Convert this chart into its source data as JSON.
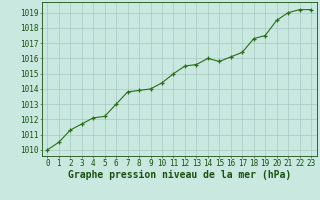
{
  "x": [
    0,
    1,
    2,
    3,
    4,
    5,
    6,
    7,
    8,
    9,
    10,
    11,
    12,
    13,
    14,
    15,
    16,
    17,
    18,
    19,
    20,
    21,
    22,
    23
  ],
  "y": [
    1010.0,
    1010.5,
    1011.3,
    1011.7,
    1012.1,
    1012.2,
    1013.0,
    1013.8,
    1013.9,
    1014.0,
    1014.4,
    1015.0,
    1015.5,
    1015.6,
    1016.0,
    1015.8,
    1016.1,
    1016.4,
    1017.3,
    1017.5,
    1018.5,
    1019.0,
    1019.2,
    1019.2
  ],
  "line_color": "#2a6e1a",
  "marker": "+",
  "bg_color": "#c8e8e0",
  "grid_color": "#a0bfbb",
  "xlabel": "Graphe pression niveau de la mer (hPa)",
  "xlabel_color": "#1a5010",
  "ylabel_ticks": [
    1010,
    1011,
    1012,
    1013,
    1014,
    1015,
    1016,
    1017,
    1018,
    1019
  ],
  "ylim": [
    1009.6,
    1019.7
  ],
  "xlim": [
    -0.5,
    23.5
  ],
  "tick_color": "#1a5010",
  "tick_fontsize": 5.5,
  "xlabel_fontsize": 7.0,
  "spine_color": "#1a5010",
  "linewidth": 0.8,
  "markersize": 3.5,
  "markeredgewidth": 0.9
}
